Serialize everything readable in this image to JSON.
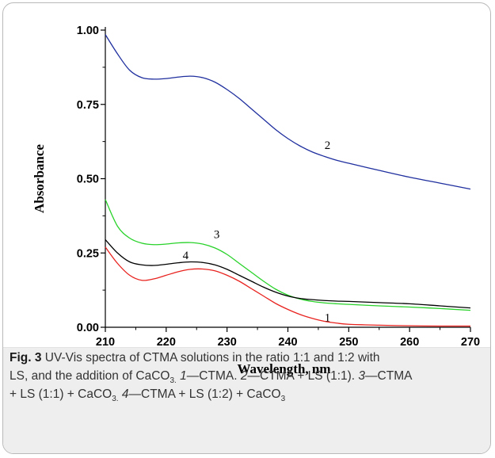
{
  "chart_data": {
    "type": "line",
    "xlabel": "Wavelength, nm",
    "ylabel": "Absorbance",
    "xlim": [
      210,
      270
    ],
    "ylim": [
      0.0,
      1.0
    ],
    "x_ticks": [
      "210",
      "220",
      "230",
      "240",
      "250",
      "260",
      "270"
    ],
    "y_ticks": [
      "0.00",
      "0.25",
      "0.50",
      "0.75",
      "1.00"
    ],
    "grid": false,
    "series": [
      {
        "name": "1",
        "color": "#e8231f",
        "label_x": 246.5,
        "label_y": 0.02,
        "x": [
          210,
          212,
          214,
          216,
          218,
          220,
          222,
          224,
          226,
          228,
          230,
          232,
          234,
          236,
          238,
          240,
          242,
          244,
          246,
          248,
          250,
          255,
          260,
          265,
          270
        ],
        "y": [
          0.27,
          0.215,
          0.175,
          0.158,
          0.163,
          0.175,
          0.187,
          0.195,
          0.196,
          0.19,
          0.175,
          0.155,
          0.13,
          0.105,
          0.08,
          0.06,
          0.043,
          0.03,
          0.02,
          0.014,
          0.01,
          0.007,
          0.005,
          0.004,
          0.004
        ]
      },
      {
        "name": "2",
        "color": "#1f2f9e",
        "label_x": 246.5,
        "label_y": 0.6,
        "x": [
          210,
          212,
          214,
          216,
          218,
          220,
          222,
          224,
          226,
          228,
          230,
          232,
          234,
          236,
          238,
          240,
          242,
          244,
          246,
          248,
          250,
          255,
          260,
          265,
          270
        ],
        "y": [
          0.985,
          0.92,
          0.865,
          0.84,
          0.835,
          0.837,
          0.842,
          0.845,
          0.84,
          0.825,
          0.8,
          0.77,
          0.735,
          0.7,
          0.665,
          0.635,
          0.61,
          0.59,
          0.575,
          0.562,
          0.552,
          0.528,
          0.505,
          0.485,
          0.465
        ]
      },
      {
        "name": "3",
        "color": "#29d22a",
        "label_x": 228.3,
        "label_y": 0.3,
        "x": [
          210,
          212,
          214,
          216,
          218,
          220,
          222,
          224,
          226,
          228,
          230,
          232,
          234,
          236,
          238,
          240,
          242,
          244,
          246,
          248,
          250,
          255,
          260,
          265,
          270
        ],
        "y": [
          0.43,
          0.34,
          0.3,
          0.283,
          0.278,
          0.28,
          0.284,
          0.285,
          0.28,
          0.267,
          0.245,
          0.215,
          0.185,
          0.155,
          0.128,
          0.108,
          0.095,
          0.087,
          0.082,
          0.079,
          0.077,
          0.072,
          0.068,
          0.063,
          0.057
        ]
      },
      {
        "name": "4",
        "color": "#000000",
        "label_x": 223.2,
        "label_y": 0.23,
        "x": [
          210,
          212,
          214,
          216,
          218,
          220,
          222,
          224,
          226,
          228,
          230,
          232,
          234,
          236,
          238,
          240,
          242,
          244,
          246,
          248,
          250,
          255,
          260,
          265,
          270
        ],
        "y": [
          0.295,
          0.25,
          0.22,
          0.21,
          0.208,
          0.212,
          0.217,
          0.22,
          0.218,
          0.21,
          0.195,
          0.175,
          0.155,
          0.135,
          0.118,
          0.105,
          0.097,
          0.093,
          0.09,
          0.088,
          0.087,
          0.083,
          0.079,
          0.072,
          0.065
        ]
      }
    ]
  },
  "caption": {
    "fig_label": "Fig. 3",
    "line1": " UV-Vis spectra of CTMA solutions in the ratio 1:1 and 1:2 with",
    "line2a": "LS, and the addition of CaCO",
    "sub1": "3.",
    "n1": " 1",
    "t1": "—CTMA. ",
    "n2": "2",
    "t2": "—CTMA + LS (1:1). ",
    "n3": "3",
    "t3": "—CTMA",
    "line3a": "+ LS (1:1) + CaCO",
    "sub2": "3.",
    "n4": " 4",
    "t4": "—CTMA + LS (1:2) + CaCO",
    "sub3": "3"
  }
}
